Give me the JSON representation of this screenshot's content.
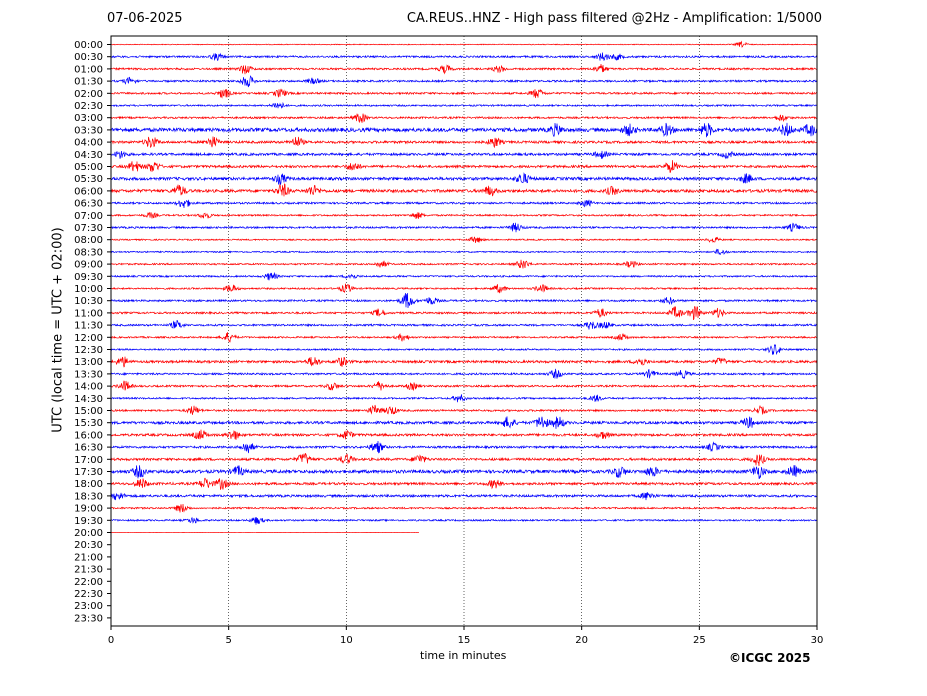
{
  "header": {
    "date": "07-06-2025",
    "title": "CA.REUS..HNZ - High pass filtered @2Hz - Amplification: 1/5000"
  },
  "footer": {
    "credit": "©ICGC 2025"
  },
  "colors": {
    "trace_a": "#ff0000",
    "trace_b": "#0000ff",
    "axis": "#000000",
    "gridline": "#000000"
  },
  "chart_data": {
    "type": "line",
    "title": "CA.REUS..HNZ - High pass filtered @2Hz - Amplification: 1/5000",
    "xlabel": "time in minutes",
    "ylabel": "UTC (local time = UTC + 02:00)",
    "xlim": [
      0,
      30
    ],
    "x_ticks": [
      "0",
      "5",
      "10",
      "15",
      "20",
      "25",
      "30"
    ],
    "grid": "vertical dotted lines at x = 5, 10, 15, 20, 25",
    "row_labels": [
      "00:00",
      "00:30",
      "01:00",
      "01:30",
      "02:00",
      "02:30",
      "03:00",
      "03:30",
      "04:00",
      "04:30",
      "05:00",
      "05:30",
      "06:00",
      "06:30",
      "07:00",
      "07:30",
      "08:00",
      "08:30",
      "09:00",
      "09:30",
      "10:00",
      "10:30",
      "11:00",
      "11:30",
      "12:00",
      "12:30",
      "13:00",
      "13:30",
      "14:00",
      "14:30",
      "15:00",
      "15:30",
      "16:00",
      "16:30",
      "17:00",
      "17:30",
      "18:00",
      "18:30",
      "19:00",
      "19:30",
      "20:00",
      "20:30",
      "21:00",
      "21:30",
      "22:00",
      "22:30",
      "23:00",
      "23:30"
    ],
    "traces": [
      {
        "row": "00:00",
        "color": "red",
        "x_start": 0,
        "x_end": 30,
        "noise": 0.15,
        "events": [
          {
            "t": 26.8,
            "a": 1.0
          }
        ]
      },
      {
        "row": "00:30",
        "color": "blue",
        "x_start": 0,
        "x_end": 30,
        "noise": 0.35,
        "events": [
          {
            "t": 4.5,
            "a": 1.2
          },
          {
            "t": 20.9,
            "a": 1.5
          },
          {
            "t": 21.5,
            "a": 1.0
          }
        ]
      },
      {
        "row": "01:00",
        "color": "red",
        "x_start": 0,
        "x_end": 30,
        "noise": 0.35,
        "events": [
          {
            "t": 5.7,
            "a": 1.8
          },
          {
            "t": 14.2,
            "a": 1.4
          },
          {
            "t": 16.5,
            "a": 1.2
          },
          {
            "t": 20.8,
            "a": 1.6
          }
        ]
      },
      {
        "row": "01:30",
        "color": "blue",
        "x_start": 0,
        "x_end": 30,
        "noise": 0.35,
        "events": [
          {
            "t": 0.8,
            "a": 1.2
          },
          {
            "t": 5.8,
            "a": 2.2
          },
          {
            "t": 8.6,
            "a": 1.0
          }
        ]
      },
      {
        "row": "02:00",
        "color": "red",
        "x_start": 0,
        "x_end": 30,
        "noise": 0.35,
        "events": [
          {
            "t": 4.8,
            "a": 1.8
          },
          {
            "t": 7.2,
            "a": 1.5
          },
          {
            "t": 18.1,
            "a": 1.7
          }
        ]
      },
      {
        "row": "02:30",
        "color": "blue",
        "x_start": 0,
        "x_end": 30,
        "noise": 0.3,
        "events": [
          {
            "t": 7.1,
            "a": 1.4
          }
        ]
      },
      {
        "row": "03:00",
        "color": "red",
        "x_start": 0,
        "x_end": 30,
        "noise": 0.35,
        "events": [
          {
            "t": 10.6,
            "a": 1.8
          },
          {
            "t": 28.5,
            "a": 1.2
          }
        ]
      },
      {
        "row": "03:30",
        "color": "blue",
        "x_start": 0,
        "x_end": 30,
        "noise": 0.7,
        "events": [
          {
            "t": 18.9,
            "a": 2.0
          },
          {
            "t": 22.0,
            "a": 1.8
          },
          {
            "t": 23.6,
            "a": 2.0
          },
          {
            "t": 25.3,
            "a": 2.4
          },
          {
            "t": 28.7,
            "a": 2.2
          },
          {
            "t": 29.7,
            "a": 2.0
          }
        ]
      },
      {
        "row": "04:00",
        "color": "red",
        "x_start": 0,
        "x_end": 30,
        "noise": 0.45,
        "events": [
          {
            "t": 1.7,
            "a": 2.2
          },
          {
            "t": 4.3,
            "a": 2.0
          },
          {
            "t": 7.9,
            "a": 1.8
          },
          {
            "t": 16.3,
            "a": 1.8
          }
        ]
      },
      {
        "row": "04:30",
        "color": "blue",
        "x_start": 0,
        "x_end": 30,
        "noise": 0.45,
        "events": [
          {
            "t": 0.4,
            "a": 1.4
          },
          {
            "t": 20.8,
            "a": 1.4
          },
          {
            "t": 26.2,
            "a": 1.2
          }
        ]
      },
      {
        "row": "05:00",
        "color": "red",
        "x_start": 0,
        "x_end": 30,
        "noise": 0.45,
        "events": [
          {
            "t": 1.0,
            "a": 2.0
          },
          {
            "t": 1.8,
            "a": 2.0
          },
          {
            "t": 10.3,
            "a": 1.6
          },
          {
            "t": 23.8,
            "a": 2.2
          }
        ]
      },
      {
        "row": "05:30",
        "color": "blue",
        "x_start": 0,
        "x_end": 30,
        "noise": 0.55,
        "events": [
          {
            "t": 7.2,
            "a": 1.8
          },
          {
            "t": 17.5,
            "a": 2.0
          },
          {
            "t": 27.0,
            "a": 1.6
          }
        ]
      },
      {
        "row": "06:00",
        "color": "red",
        "x_start": 0,
        "x_end": 30,
        "noise": 0.55,
        "events": [
          {
            "t": 2.9,
            "a": 2.0
          },
          {
            "t": 7.3,
            "a": 2.4
          },
          {
            "t": 8.6,
            "a": 1.8
          },
          {
            "t": 16.1,
            "a": 1.8
          },
          {
            "t": 21.3,
            "a": 1.4
          }
        ]
      },
      {
        "row": "06:30",
        "color": "blue",
        "x_start": 0,
        "x_end": 30,
        "noise": 0.35,
        "events": [
          {
            "t": 3.1,
            "a": 1.8
          },
          {
            "t": 20.2,
            "a": 1.2
          }
        ]
      },
      {
        "row": "07:00",
        "color": "red",
        "x_start": 0,
        "x_end": 30,
        "noise": 0.3,
        "events": [
          {
            "t": 1.7,
            "a": 1.0
          },
          {
            "t": 4.0,
            "a": 1.2
          },
          {
            "t": 13.0,
            "a": 1.2
          }
        ]
      },
      {
        "row": "07:30",
        "color": "blue",
        "x_start": 0,
        "x_end": 30,
        "noise": 0.35,
        "events": [
          {
            "t": 17.2,
            "a": 1.6
          },
          {
            "t": 29.0,
            "a": 1.4
          }
        ]
      },
      {
        "row": "08:00",
        "color": "red",
        "x_start": 0,
        "x_end": 30,
        "noise": 0.25,
        "events": [
          {
            "t": 15.5,
            "a": 1.2
          },
          {
            "t": 25.6,
            "a": 1.0
          }
        ]
      },
      {
        "row": "08:30",
        "color": "blue",
        "x_start": 0,
        "x_end": 30,
        "noise": 0.25,
        "events": [
          {
            "t": 25.9,
            "a": 1.0
          }
        ]
      },
      {
        "row": "09:00",
        "color": "red",
        "x_start": 0,
        "x_end": 30,
        "noise": 0.3,
        "events": [
          {
            "t": 11.5,
            "a": 1.2
          },
          {
            "t": 17.5,
            "a": 1.8
          },
          {
            "t": 22.1,
            "a": 1.2
          }
        ]
      },
      {
        "row": "09:30",
        "color": "blue",
        "x_start": 0,
        "x_end": 30,
        "noise": 0.3,
        "events": [
          {
            "t": 6.8,
            "a": 1.5
          },
          {
            "t": 10.2,
            "a": 1.0
          }
        ]
      },
      {
        "row": "10:00",
        "color": "red",
        "x_start": 0,
        "x_end": 30,
        "noise": 0.3,
        "events": [
          {
            "t": 5.1,
            "a": 1.4
          },
          {
            "t": 10.0,
            "a": 1.6
          },
          {
            "t": 16.5,
            "a": 1.5
          },
          {
            "t": 18.3,
            "a": 1.4
          }
        ]
      },
      {
        "row": "10:30",
        "color": "blue",
        "x_start": 0,
        "x_end": 30,
        "noise": 0.35,
        "events": [
          {
            "t": 12.6,
            "a": 3.0
          },
          {
            "t": 13.6,
            "a": 1.4
          },
          {
            "t": 23.7,
            "a": 1.2
          }
        ]
      },
      {
        "row": "11:00",
        "color": "red",
        "x_start": 0,
        "x_end": 30,
        "noise": 0.35,
        "events": [
          {
            "t": 11.4,
            "a": 1.4
          },
          {
            "t": 20.8,
            "a": 1.6
          },
          {
            "t": 24.0,
            "a": 2.2
          },
          {
            "t": 24.8,
            "a": 2.6
          },
          {
            "t": 25.8,
            "a": 1.6
          }
        ]
      },
      {
        "row": "11:30",
        "color": "blue",
        "x_start": 0,
        "x_end": 30,
        "noise": 0.35,
        "events": [
          {
            "t": 2.8,
            "a": 1.5
          },
          {
            "t": 20.4,
            "a": 1.6
          },
          {
            "t": 21.0,
            "a": 1.2
          }
        ]
      },
      {
        "row": "12:00",
        "color": "red",
        "x_start": 0,
        "x_end": 30,
        "noise": 0.3,
        "events": [
          {
            "t": 5.0,
            "a": 1.8
          },
          {
            "t": 12.4,
            "a": 1.2
          },
          {
            "t": 21.7,
            "a": 1.2
          }
        ]
      },
      {
        "row": "12:30",
        "color": "blue",
        "x_start": 0,
        "x_end": 30,
        "noise": 0.3,
        "events": [
          {
            "t": 28.2,
            "a": 2.0
          }
        ]
      },
      {
        "row": "13:00",
        "color": "red",
        "x_start": 0,
        "x_end": 30,
        "noise": 0.45,
        "events": [
          {
            "t": 0.5,
            "a": 1.8
          },
          {
            "t": 8.6,
            "a": 1.8
          },
          {
            "t": 9.8,
            "a": 1.6
          },
          {
            "t": 22.5,
            "a": 1.4
          },
          {
            "t": 25.9,
            "a": 1.2
          }
        ]
      },
      {
        "row": "13:30",
        "color": "blue",
        "x_start": 0,
        "x_end": 30,
        "noise": 0.35,
        "events": [
          {
            "t": 18.9,
            "a": 1.6
          },
          {
            "t": 22.9,
            "a": 1.4
          },
          {
            "t": 24.3,
            "a": 1.4
          }
        ]
      },
      {
        "row": "14:00",
        "color": "red",
        "x_start": 0,
        "x_end": 30,
        "noise": 0.35,
        "events": [
          {
            "t": 0.6,
            "a": 1.8
          },
          {
            "t": 9.4,
            "a": 1.4
          },
          {
            "t": 11.4,
            "a": 1.6
          },
          {
            "t": 12.8,
            "a": 1.2
          }
        ]
      },
      {
        "row": "14:30",
        "color": "blue",
        "x_start": 0,
        "x_end": 30,
        "noise": 0.3,
        "events": [
          {
            "t": 14.8,
            "a": 1.4
          },
          {
            "t": 20.6,
            "a": 1.2
          }
        ]
      },
      {
        "row": "15:00",
        "color": "red",
        "x_start": 0,
        "x_end": 30,
        "noise": 0.35,
        "events": [
          {
            "t": 3.5,
            "a": 1.6
          },
          {
            "t": 11.2,
            "a": 1.8
          },
          {
            "t": 11.9,
            "a": 1.6
          },
          {
            "t": 27.6,
            "a": 1.4
          }
        ]
      },
      {
        "row": "15:30",
        "color": "blue",
        "x_start": 0,
        "x_end": 30,
        "noise": 0.5,
        "events": [
          {
            "t": 16.9,
            "a": 2.2
          },
          {
            "t": 18.3,
            "a": 2.6
          },
          {
            "t": 19.0,
            "a": 2.2
          },
          {
            "t": 27.1,
            "a": 2.0
          }
        ]
      },
      {
        "row": "16:00",
        "color": "red",
        "x_start": 0,
        "x_end": 30,
        "noise": 0.45,
        "events": [
          {
            "t": 3.8,
            "a": 1.8
          },
          {
            "t": 5.2,
            "a": 1.8
          },
          {
            "t": 10.0,
            "a": 1.6
          },
          {
            "t": 20.9,
            "a": 1.4
          }
        ]
      },
      {
        "row": "16:30",
        "color": "blue",
        "x_start": 0,
        "x_end": 30,
        "noise": 0.4,
        "events": [
          {
            "t": 5.8,
            "a": 2.2
          },
          {
            "t": 11.3,
            "a": 2.2
          },
          {
            "t": 25.6,
            "a": 1.4
          }
        ]
      },
      {
        "row": "17:00",
        "color": "red",
        "x_start": 0,
        "x_end": 30,
        "noise": 0.45,
        "events": [
          {
            "t": 8.2,
            "a": 2.2
          },
          {
            "t": 10.0,
            "a": 1.8
          },
          {
            "t": 13.1,
            "a": 1.6
          },
          {
            "t": 27.5,
            "a": 2.2
          }
        ]
      },
      {
        "row": "17:30",
        "color": "blue",
        "x_start": 0,
        "x_end": 30,
        "noise": 0.6,
        "events": [
          {
            "t": 1.2,
            "a": 2.2
          },
          {
            "t": 5.4,
            "a": 1.8
          },
          {
            "t": 21.6,
            "a": 2.0
          },
          {
            "t": 23.0,
            "a": 1.8
          },
          {
            "t": 27.5,
            "a": 2.4
          },
          {
            "t": 29.0,
            "a": 2.0
          }
        ]
      },
      {
        "row": "18:00",
        "color": "red",
        "x_start": 0,
        "x_end": 30,
        "noise": 0.45,
        "events": [
          {
            "t": 1.3,
            "a": 1.8
          },
          {
            "t": 4.0,
            "a": 2.0
          },
          {
            "t": 4.7,
            "a": 2.0
          },
          {
            "t": 16.3,
            "a": 1.6
          }
        ]
      },
      {
        "row": "18:30",
        "color": "blue",
        "x_start": 0,
        "x_end": 30,
        "noise": 0.45,
        "events": [
          {
            "t": 0.3,
            "a": 1.4
          },
          {
            "t": 22.8,
            "a": 1.4
          }
        ]
      },
      {
        "row": "19:00",
        "color": "red",
        "x_start": 0,
        "x_end": 30,
        "noise": 0.3,
        "events": [
          {
            "t": 3.0,
            "a": 1.6
          }
        ]
      },
      {
        "row": "19:30",
        "color": "blue",
        "x_start": 0,
        "x_end": 30,
        "noise": 0.3,
        "events": [
          {
            "t": 3.5,
            "a": 1.0
          },
          {
            "t": 6.2,
            "a": 1.4
          }
        ]
      },
      {
        "row": "20:00",
        "color": "red",
        "x_start": 0,
        "x_end": 13.1,
        "noise": 0.06,
        "events": []
      }
    ]
  }
}
